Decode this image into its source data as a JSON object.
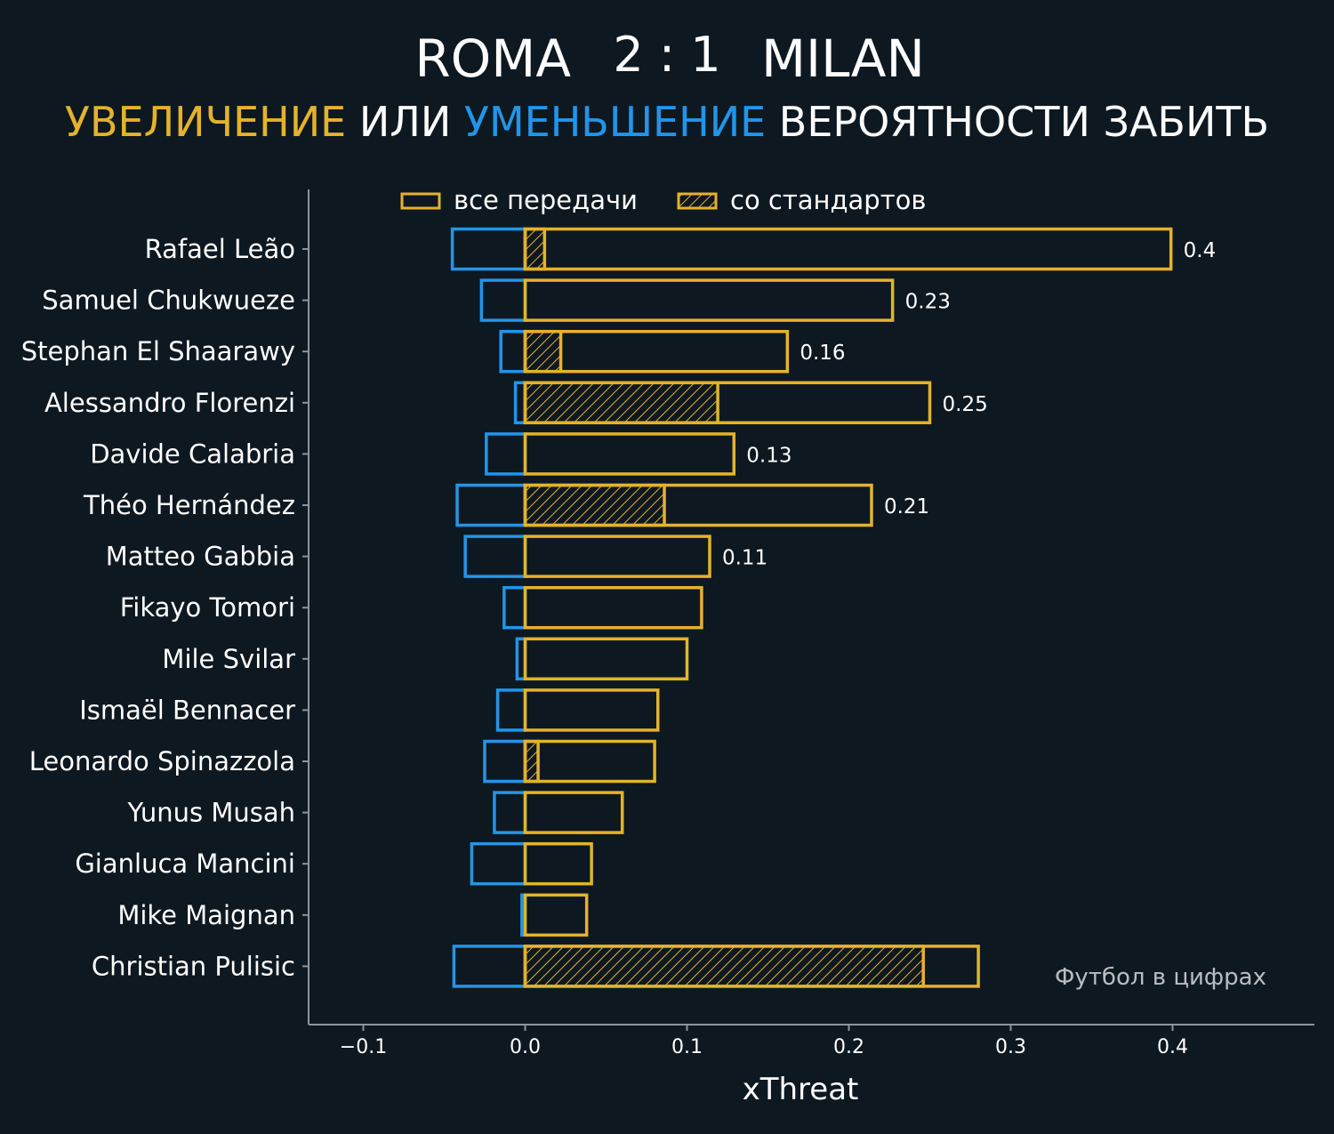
{
  "header": {
    "home_team": "ROMA",
    "score": "2 : 1",
    "away_team": "MILAN",
    "subtitle_increase": "УВЕЛИЧЕНИЕ",
    "subtitle_or": "ИЛИ",
    "subtitle_decrease": "УМЕНЬШЕНИЕ",
    "subtitle_rest": "ВЕРОЯТНОСТИ ЗАБИТЬ"
  },
  "colors": {
    "background": "#0e1821",
    "increase": "#e4b32a",
    "decrease": "#2295e8",
    "axis": "#8c959e",
    "text": "#ffffff"
  },
  "watermark": "Футбол в цифрах",
  "chart_data": {
    "type": "bar",
    "orientation": "horizontal",
    "xlabel": "xThreat",
    "ylabel": "",
    "xlim": [
      -0.135,
      0.485
    ],
    "xticks": [
      -0.1,
      0.0,
      0.1,
      0.2,
      0.3,
      0.4
    ],
    "xtick_labels": [
      "−0.1",
      "0.0",
      "0.1",
      "0.2",
      "0.3",
      "0.4"
    ],
    "grid": false,
    "legend": {
      "placement": "top-center",
      "entries": [
        "все передачи",
        "со стандартов"
      ]
    },
    "categories": [
      "Rafael Leão",
      "Samuel Chukwueze",
      "Stephan El Shaarawy",
      "Alessandro Florenzi",
      "Davide Calabria",
      "Théo Hernández",
      "Matteo Gabbia",
      "Fikayo Tomori",
      "Mile Svilar",
      "Ismaël Bennacer",
      "Leonardo Spinazzola",
      "Yunus Musah",
      "Gianluca Mancini",
      "Mike Maignan",
      "Christian Pulisic"
    ],
    "series": [
      {
        "name": "все передачи",
        "role": "increase",
        "values": [
          0.399,
          0.227,
          0.162,
          0.25,
          0.129,
          0.214,
          0.114,
          0.109,
          0.1,
          0.082,
          0.08,
          0.06,
          0.041,
          0.038,
          0.28
        ]
      },
      {
        "name": "со стандартов",
        "role": "increase_set_piece",
        "values": [
          0.012,
          0.0,
          0.022,
          0.119,
          0.0,
          0.086,
          0.0,
          0.0,
          0.0,
          0.0,
          0.008,
          0.0,
          0.0,
          0.0,
          0.246
        ]
      },
      {
        "role": "decrease",
        "values": [
          -0.045,
          -0.027,
          -0.015,
          -0.006,
          -0.024,
          -0.042,
          -0.037,
          -0.013,
          -0.005,
          -0.017,
          -0.025,
          -0.019,
          -0.033,
          -0.002,
          -0.044
        ]
      }
    ],
    "value_labels": [
      "0.4",
      "0.23",
      "0.16",
      "0.25",
      "0.13",
      "0.21",
      "0.11",
      "",
      "",
      "",
      "",
      "",
      "",
      "",
      ""
    ]
  }
}
